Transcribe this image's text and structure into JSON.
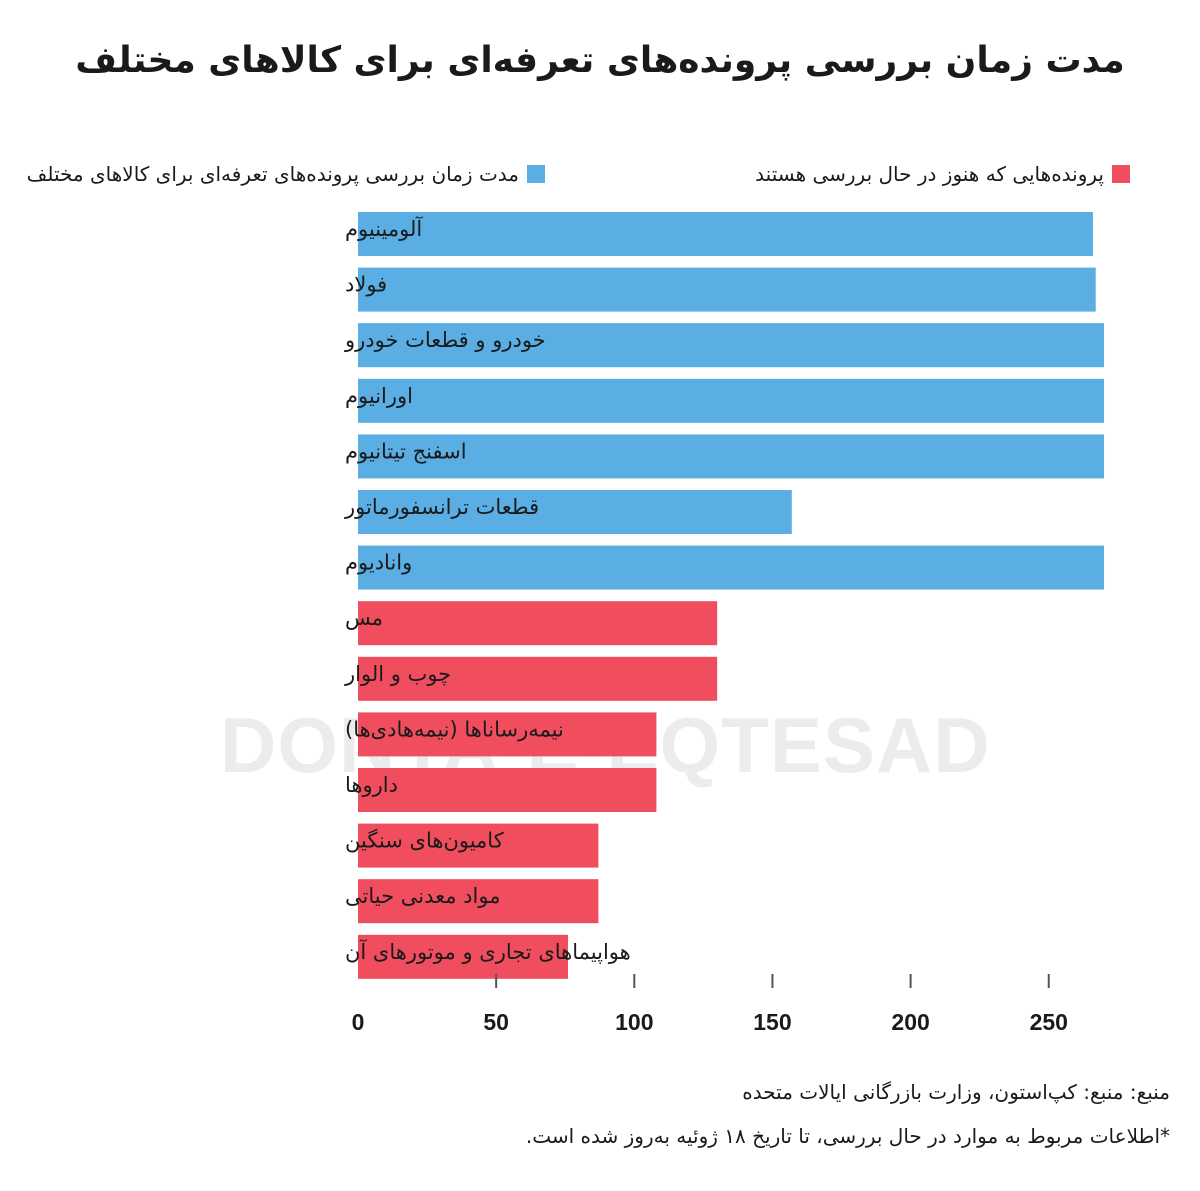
{
  "chart_data": {
    "type": "bar",
    "orientation": "horizontal",
    "title": "مدت زمان بررسی پرونده‌های تعرفه‌ای برای کالاهای مختلف",
    "legend": [
      {
        "name": "پرونده‌هایی که هنوز در حال بررسی هستند",
        "color": "#f04e5e"
      },
      {
        "name": "مدت زمان بررسی پرونده‌های تعرفه‌ای برای کالاهای مختلف",
        "color": "#5aaee3"
      }
    ],
    "legend_placement": "top",
    "categories": [
      "آلومینیوم",
      "فولاد",
      "خودرو و قطعات خودرو",
      "اورانیوم",
      "اسفنج  تیتانیوم",
      "قطعات  ترانسفورماتور",
      "وانادیوم",
      "مس",
      "چوب و الوار",
      "نیمه‌رساناها  (نیمه‌هادی‌ها)",
      "داروها",
      "کامیون‌های سنگین",
      "مواد معدنی حیاتی",
      "هواپیماهای تجاری و موتورهای آن"
    ],
    "values": [
      266,
      267,
      270,
      270,
      270,
      157,
      270,
      130,
      130,
      108,
      108,
      87,
      87,
      76
    ],
    "status": [
      "done",
      "done",
      "done",
      "done",
      "done",
      "done",
      "done",
      "pending",
      "pending",
      "pending",
      "pending",
      "pending",
      "pending",
      "pending"
    ],
    "xlim": [
      0,
      270
    ],
    "xticks": [
      "0",
      "50",
      "100",
      "150",
      "200",
      "250"
    ],
    "grid": false
  },
  "colors": {
    "done": "#5aaee3",
    "pending": "#f04e5e"
  },
  "watermark": "DONYA-E-EQTESAD",
  "footer": {
    "source": "منبع: منبع: کپ‌استون، وزارت بازرگانی ایالات متحده",
    "note": "*اطلاعات مربوط به موارد در حال بررسی، تا تاریخ ۱۸ ژوئیه به‌روز شده است."
  }
}
